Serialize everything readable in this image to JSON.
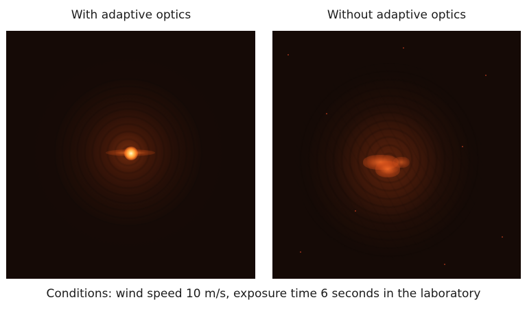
{
  "panels": [
    {
      "title": "With adaptive optics"
    },
    {
      "title": "Without adaptive optics"
    }
  ],
  "caption": "Conditions: wind speed 10 m/s, exposure time 6 seconds in the laboratory",
  "colors": {
    "background": "#ffffff",
    "image_background": "#150a06",
    "glow": "#ff8a2a",
    "core": "#fff7d8"
  }
}
